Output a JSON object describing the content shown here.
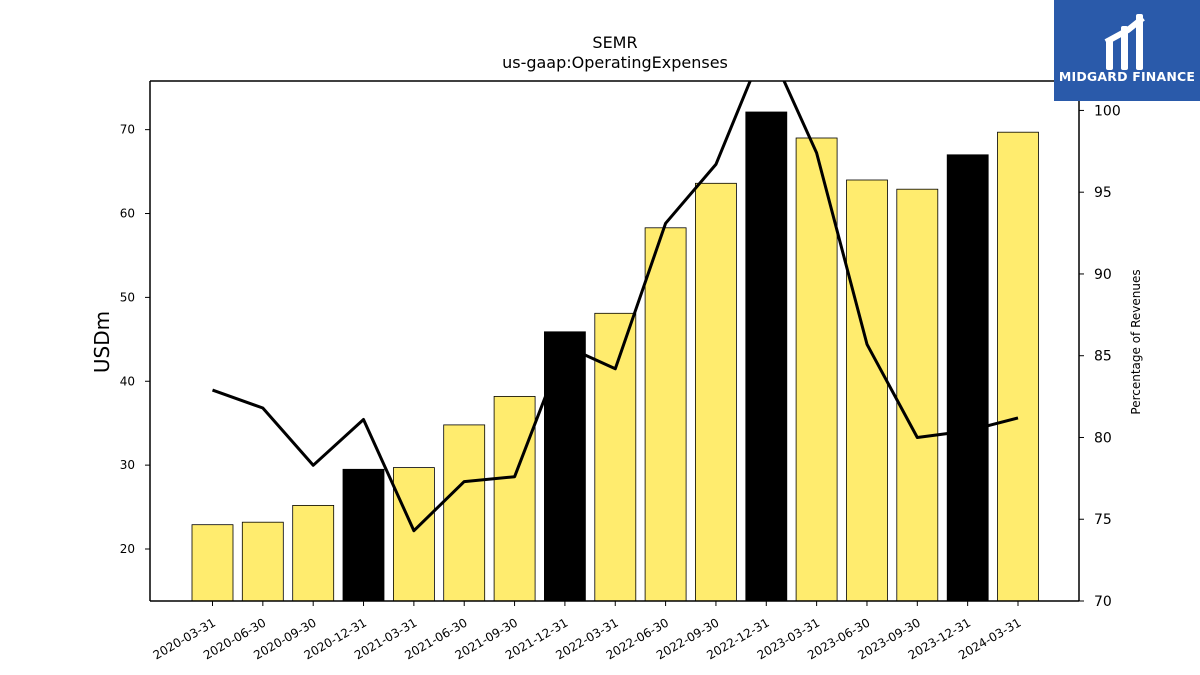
{
  "chart_data": {
    "type": "bar",
    "title": "SEMR",
    "subtitle": "us-gaap:OperatingExpenses",
    "ylabel": "USDm",
    "y2label": "Percentage of Revenues",
    "categories": [
      "2020-03-31",
      "2020-06-30",
      "2020-09-30",
      "2020-12-31",
      "2021-03-31",
      "2021-06-30",
      "2021-09-30",
      "2021-12-31",
      "2022-03-31",
      "2022-06-30",
      "2022-09-30",
      "2022-12-31",
      "2023-03-31",
      "2023-06-30",
      "2023-09-30",
      "2023-12-31",
      "2024-03-31"
    ],
    "series": [
      {
        "type": "bar",
        "axis": "left",
        "values": [
          22.9,
          23.2,
          25.2,
          29.5,
          29.7,
          34.8,
          38.2,
          45.9,
          48.1,
          58.3,
          63.6,
          72.1,
          69.0,
          64.0,
          62.9,
          67.0,
          69.7
        ],
        "colors": [
          "#ffec6e",
          "#ffec6e",
          "#ffec6e",
          "#000000",
          "#ffec6e",
          "#ffec6e",
          "#ffec6e",
          "#000000",
          "#ffec6e",
          "#ffec6e",
          "#ffec6e",
          "#000000",
          "#ffec6e",
          "#ffec6e",
          "#ffec6e",
          "#000000",
          "#ffec6e"
        ]
      },
      {
        "type": "line",
        "axis": "right",
        "color": "#000000",
        "values": [
          82.9,
          81.8,
          78.3,
          81.1,
          74.3,
          77.3,
          77.6,
          85.6,
          84.2,
          93.1,
          96.7,
          104.2,
          97.4,
          85.7,
          80.0,
          80.4,
          81.2
        ]
      }
    ],
    "ylim": [
      13.8,
      75.8
    ],
    "y2lim": [
      70.0,
      101.8
    ],
    "yticks": [
      20,
      30,
      40,
      50,
      60,
      70
    ],
    "y2ticks": [
      70,
      75,
      80,
      85,
      90,
      95,
      100
    ],
    "grid": false,
    "legend": "none"
  },
  "logo": {
    "text": "MIDGARD FINANCE"
  }
}
